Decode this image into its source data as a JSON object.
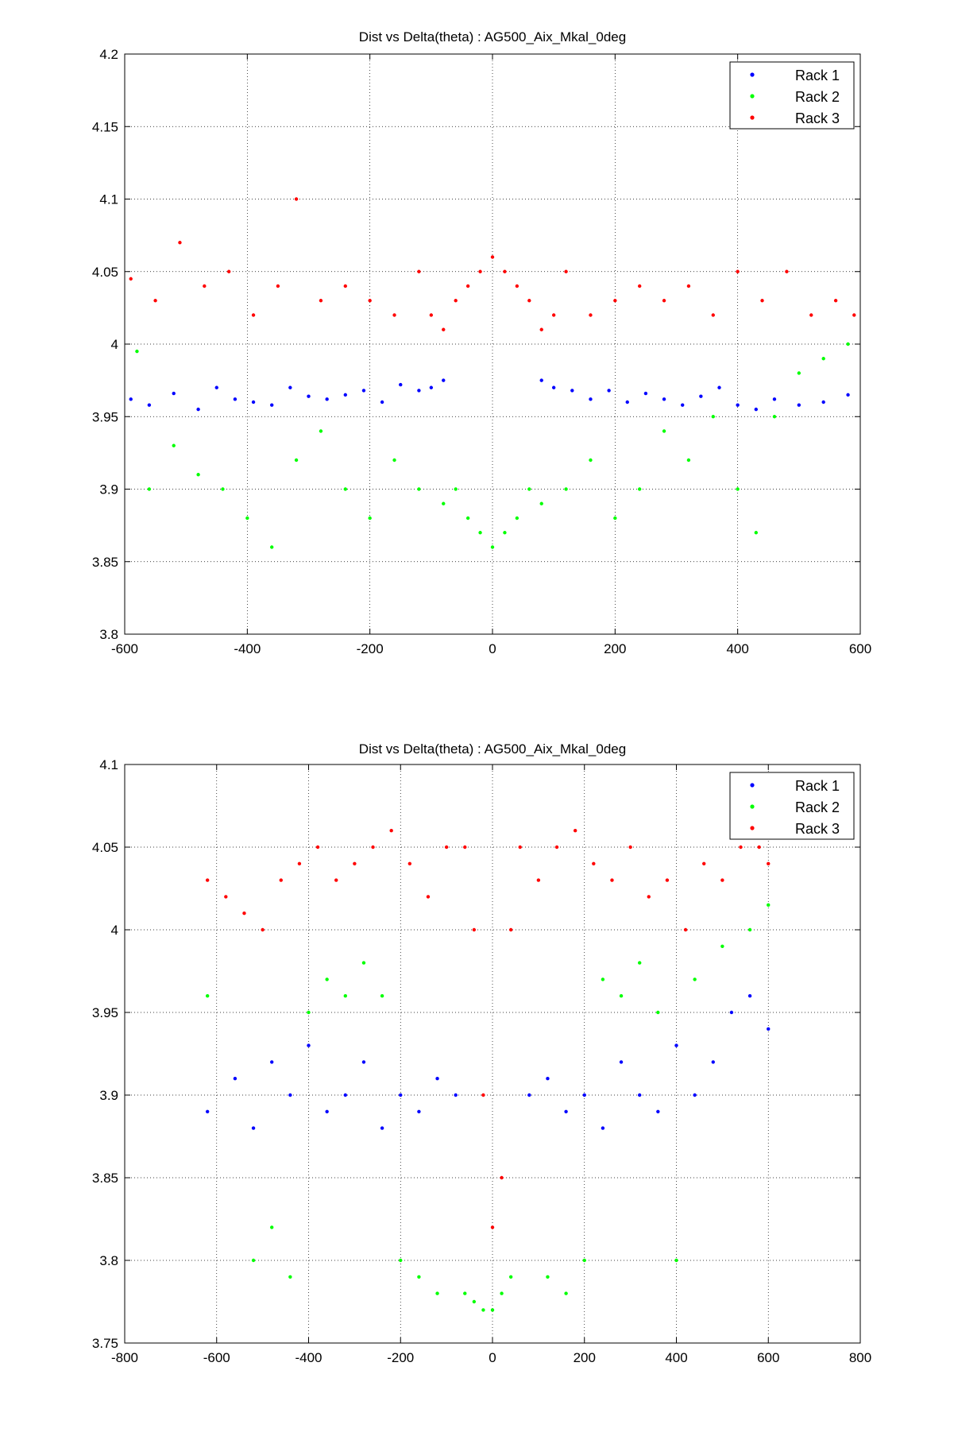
{
  "chart_data": [
    {
      "type": "scatter",
      "title": "Dist vs Delta(theta) : AG500_Aix_Mkal_0deg",
      "xlabel": "",
      "ylabel": "",
      "xlim": [
        -600,
        600
      ],
      "ylim": [
        3.8,
        4.2
      ],
      "xticks": [
        "-600",
        "-400",
        "-200",
        "0",
        "200",
        "400",
        "600"
      ],
      "yticks": [
        "3.8",
        "3.85",
        "3.9",
        "3.95",
        "4",
        "4.05",
        "4.1",
        "4.15",
        "4.2"
      ],
      "grid": true,
      "legend_position": "top-right",
      "series": [
        {
          "name": "Rack 1",
          "color": "#0000ff",
          "points": [
            [
              -590,
              3.962
            ],
            [
              -560,
              3.958
            ],
            [
              -520,
              3.966
            ],
            [
              -480,
              3.955
            ],
            [
              -450,
              3.97
            ],
            [
              -420,
              3.962
            ],
            [
              -390,
              3.96
            ],
            [
              -360,
              3.958
            ],
            [
              -330,
              3.97
            ],
            [
              -300,
              3.964
            ],
            [
              -270,
              3.962
            ],
            [
              -240,
              3.965
            ],
            [
              -210,
              3.968
            ],
            [
              -180,
              3.96
            ],
            [
              -150,
              3.972
            ],
            [
              -120,
              3.968
            ],
            [
              -100,
              3.97
            ],
            [
              -80,
              3.975
            ],
            [
              80,
              3.975
            ],
            [
              100,
              3.97
            ],
            [
              130,
              3.968
            ],
            [
              160,
              3.962
            ],
            [
              190,
              3.968
            ],
            [
              220,
              3.96
            ],
            [
              250,
              3.966
            ],
            [
              280,
              3.962
            ],
            [
              310,
              3.958
            ],
            [
              340,
              3.964
            ],
            [
              370,
              3.97
            ],
            [
              400,
              3.958
            ],
            [
              430,
              3.955
            ],
            [
              460,
              3.962
            ],
            [
              500,
              3.958
            ],
            [
              540,
              3.96
            ],
            [
              580,
              3.965
            ]
          ]
        },
        {
          "name": "Rack 2",
          "color": "#00ff00",
          "points": [
            [
              -580,
              3.995
            ],
            [
              -560,
              3.9
            ],
            [
              -520,
              3.93
            ],
            [
              -480,
              3.91
            ],
            [
              -440,
              3.9
            ],
            [
              -400,
              3.88
            ],
            [
              -360,
              3.86
            ],
            [
              -320,
              3.92
            ],
            [
              -280,
              3.94
            ],
            [
              -240,
              3.9
            ],
            [
              -200,
              3.88
            ],
            [
              -160,
              3.92
            ],
            [
              -120,
              3.9
            ],
            [
              -80,
              3.89
            ],
            [
              -60,
              3.9
            ],
            [
              -40,
              3.88
            ],
            [
              -20,
              3.87
            ],
            [
              0,
              3.86
            ],
            [
              20,
              3.87
            ],
            [
              40,
              3.88
            ],
            [
              60,
              3.9
            ],
            [
              80,
              3.89
            ],
            [
              120,
              3.9
            ],
            [
              160,
              3.92
            ],
            [
              200,
              3.88
            ],
            [
              240,
              3.9
            ],
            [
              280,
              3.94
            ],
            [
              320,
              3.92
            ],
            [
              360,
              3.95
            ],
            [
              400,
              3.9
            ],
            [
              430,
              3.87
            ],
            [
              460,
              3.95
            ],
            [
              500,
              3.98
            ],
            [
              540,
              3.99
            ],
            [
              580,
              4.0
            ]
          ]
        },
        {
          "name": "Rack 3",
          "color": "#ff0000",
          "points": [
            [
              -590,
              4.045
            ],
            [
              -550,
              4.03
            ],
            [
              -510,
              4.07
            ],
            [
              -470,
              4.04
            ],
            [
              -430,
              4.05
            ],
            [
              -390,
              4.02
            ],
            [
              -350,
              4.04
            ],
            [
              -320,
              4.1
            ],
            [
              -280,
              4.03
            ],
            [
              -240,
              4.04
            ],
            [
              -200,
              4.03
            ],
            [
              -160,
              4.02
            ],
            [
              -120,
              4.05
            ],
            [
              -100,
              4.02
            ],
            [
              -80,
              4.01
            ],
            [
              -60,
              4.03
            ],
            [
              -40,
              4.04
            ],
            [
              -20,
              4.05
            ],
            [
              0,
              4.06
            ],
            [
              20,
              4.05
            ],
            [
              40,
              4.04
            ],
            [
              60,
              4.03
            ],
            [
              80,
              4.01
            ],
            [
              100,
              4.02
            ],
            [
              120,
              4.05
            ],
            [
              160,
              4.02
            ],
            [
              200,
              4.03
            ],
            [
              240,
              4.04
            ],
            [
              280,
              4.03
            ],
            [
              320,
              4.04
            ],
            [
              360,
              4.02
            ],
            [
              400,
              4.05
            ],
            [
              440,
              4.03
            ],
            [
              480,
              4.05
            ],
            [
              520,
              4.02
            ],
            [
              560,
              4.03
            ],
            [
              590,
              4.02
            ]
          ]
        }
      ]
    },
    {
      "type": "scatter",
      "title": "Dist vs Delta(theta) : AG500_Aix_Mkal_0deg",
      "xlabel": "",
      "ylabel": "",
      "xlim": [
        -800,
        800
      ],
      "ylim": [
        3.75,
        4.1
      ],
      "xticks": [
        "-800",
        "-600",
        "-400",
        "-200",
        "0",
        "200",
        "400",
        "600",
        "800"
      ],
      "yticks": [
        "3.75",
        "3.8",
        "3.85",
        "3.9",
        "3.95",
        "4",
        "4.05",
        "4.1"
      ],
      "grid": true,
      "legend_position": "top-right",
      "series": [
        {
          "name": "Rack 1",
          "color": "#0000ff",
          "points": [
            [
              -620,
              3.89
            ],
            [
              -560,
              3.91
            ],
            [
              -520,
              3.88
            ],
            [
              -480,
              3.92
            ],
            [
              -440,
              3.9
            ],
            [
              -400,
              3.93
            ],
            [
              -360,
              3.89
            ],
            [
              -320,
              3.9
            ],
            [
              -280,
              3.92
            ],
            [
              -240,
              3.88
            ],
            [
              -200,
              3.9
            ],
            [
              -160,
              3.89
            ],
            [
              -120,
              3.91
            ],
            [
              -80,
              3.9
            ],
            [
              80,
              3.9
            ],
            [
              120,
              3.91
            ],
            [
              160,
              3.89
            ],
            [
              200,
              3.9
            ],
            [
              240,
              3.88
            ],
            [
              280,
              3.92
            ],
            [
              320,
              3.9
            ],
            [
              360,
              3.89
            ],
            [
              400,
              3.93
            ],
            [
              440,
              3.9
            ],
            [
              480,
              3.92
            ],
            [
              520,
              3.95
            ],
            [
              560,
              3.96
            ],
            [
              600,
              3.94
            ]
          ]
        },
        {
          "name": "Rack 2",
          "color": "#00ff00",
          "points": [
            [
              -620,
              3.96
            ],
            [
              -520,
              3.8
            ],
            [
              -480,
              3.82
            ],
            [
              -440,
              3.79
            ],
            [
              -400,
              3.95
            ],
            [
              -360,
              3.97
            ],
            [
              -320,
              3.96
            ],
            [
              -280,
              3.98
            ],
            [
              -240,
              3.96
            ],
            [
              -200,
              3.8
            ],
            [
              -160,
              3.79
            ],
            [
              -120,
              3.78
            ],
            [
              -60,
              3.78
            ],
            [
              -40,
              3.775
            ],
            [
              -20,
              3.77
            ],
            [
              0,
              3.77
            ],
            [
              20,
              3.78
            ],
            [
              40,
              3.79
            ],
            [
              120,
              3.79
            ],
            [
              160,
              3.78
            ],
            [
              200,
              3.8
            ],
            [
              240,
              3.97
            ],
            [
              280,
              3.96
            ],
            [
              320,
              3.98
            ],
            [
              360,
              3.95
            ],
            [
              400,
              3.8
            ],
            [
              440,
              3.97
            ],
            [
              500,
              3.99
            ],
            [
              560,
              4.0
            ],
            [
              600,
              4.015
            ]
          ]
        },
        {
          "name": "Rack 3",
          "color": "#ff0000",
          "points": [
            [
              -620,
              4.03
            ],
            [
              -580,
              4.02
            ],
            [
              -540,
              4.01
            ],
            [
              -500,
              4.0
            ],
            [
              -460,
              4.03
            ],
            [
              -420,
              4.04
            ],
            [
              -380,
              4.05
            ],
            [
              -340,
              4.03
            ],
            [
              -300,
              4.04
            ],
            [
              -260,
              4.05
            ],
            [
              -220,
              4.06
            ],
            [
              -180,
              4.04
            ],
            [
              -140,
              4.02
            ],
            [
              -100,
              4.05
            ],
            [
              -60,
              4.05
            ],
            [
              -40,
              4.0
            ],
            [
              -20,
              3.9
            ],
            [
              0,
              3.82
            ],
            [
              20,
              3.85
            ],
            [
              40,
              4.0
            ],
            [
              60,
              4.05
            ],
            [
              100,
              4.03
            ],
            [
              140,
              4.05
            ],
            [
              180,
              4.06
            ],
            [
              220,
              4.04
            ],
            [
              260,
              4.03
            ],
            [
              300,
              4.05
            ],
            [
              340,
              4.02
            ],
            [
              380,
              4.03
            ],
            [
              420,
              4.0
            ],
            [
              460,
              4.04
            ],
            [
              500,
              4.03
            ],
            [
              540,
              4.05
            ],
            [
              580,
              4.05
            ],
            [
              600,
              4.04
            ]
          ]
        }
      ]
    }
  ]
}
